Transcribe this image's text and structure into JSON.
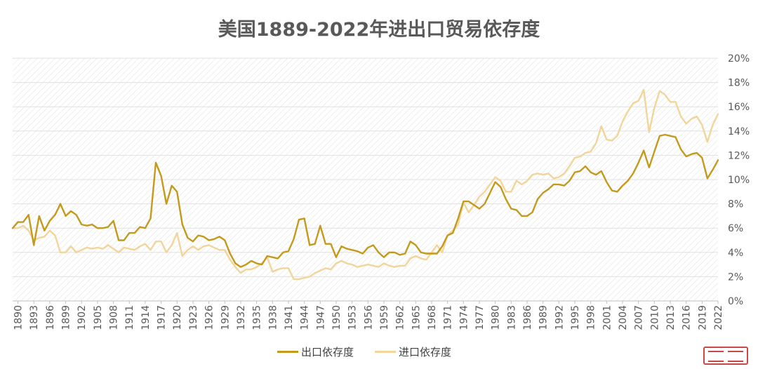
{
  "title": "美国1889-2022年进出口贸易依存度",
  "colors": {
    "export": "#c49a1c",
    "import": "#f1d59a",
    "grid": "#e0e0e0",
    "axis": "#bfbfbf"
  },
  "legend": {
    "export_label": "出口依存度",
    "import_label": "进口依存度"
  },
  "chart_data": {
    "type": "line",
    "title": "美国1889-2022年进出口贸易依存度",
    "x_range": [
      1889,
      2022
    ],
    "ylim": [
      0,
      20
    ],
    "y_axis_side": "right",
    "y_tick_labels": [
      "0%",
      "2%",
      "4%",
      "6%",
      "8%",
      "10%",
      "12%",
      "14%",
      "16%",
      "18%",
      "20%"
    ],
    "x_tick_labels": [
      "1890",
      "1893",
      "1896",
      "1899",
      "1902",
      "1905",
      "1908",
      "1911",
      "1914",
      "1917",
      "1920",
      "1923",
      "1926",
      "1929",
      "1932",
      "1935",
      "1938",
      "1941",
      "1944",
      "1947",
      "1950",
      "1953",
      "1956",
      "1959",
      "1962",
      "1965",
      "1968",
      "1971",
      "1974",
      "1977",
      "1980",
      "1983",
      "1986",
      "1989",
      "1992",
      "1995",
      "1998",
      "2001",
      "2004",
      "2007",
      "2010",
      "2013",
      "2016",
      "2019",
      "2022"
    ],
    "legend_position": "bottom",
    "grid": true,
    "series": [
      {
        "name": "出口依存度",
        "points": [
          [
            1889,
            6.0
          ],
          [
            1890,
            6.5
          ],
          [
            1891,
            6.5
          ],
          [
            1892,
            7.1
          ],
          [
            1893,
            4.6
          ],
          [
            1894,
            7.0
          ],
          [
            1895,
            5.8
          ],
          [
            1896,
            6.6
          ],
          [
            1897,
            7.1
          ],
          [
            1898,
            8.0
          ],
          [
            1899,
            7.0
          ],
          [
            1900,
            7.4
          ],
          [
            1901,
            7.1
          ],
          [
            1902,
            6.3
          ],
          [
            1903,
            6.2
          ],
          [
            1904,
            6.3
          ],
          [
            1905,
            6.0
          ],
          [
            1906,
            6.0
          ],
          [
            1907,
            6.1
          ],
          [
            1908,
            6.6
          ],
          [
            1909,
            5.0
          ],
          [
            1910,
            5.0
          ],
          [
            1911,
            5.6
          ],
          [
            1912,
            5.6
          ],
          [
            1913,
            6.1
          ],
          [
            1914,
            6.0
          ],
          [
            1915,
            6.8
          ],
          [
            1916,
            11.4
          ],
          [
            1917,
            10.3
          ],
          [
            1918,
            8.0
          ],
          [
            1919,
            9.5
          ],
          [
            1920,
            9.0
          ],
          [
            1921,
            6.3
          ],
          [
            1922,
            5.2
          ],
          [
            1923,
            4.9
          ],
          [
            1924,
            5.4
          ],
          [
            1925,
            5.3
          ],
          [
            1926,
            5.0
          ],
          [
            1927,
            5.1
          ],
          [
            1928,
            5.3
          ],
          [
            1929,
            5.0
          ],
          [
            1930,
            3.9
          ],
          [
            1931,
            3.1
          ],
          [
            1932,
            2.8
          ],
          [
            1933,
            3.0
          ],
          [
            1934,
            3.3
          ],
          [
            1935,
            3.1
          ],
          [
            1936,
            3.0
          ],
          [
            1937,
            3.7
          ],
          [
            1938,
            3.6
          ],
          [
            1939,
            3.5
          ],
          [
            1940,
            4.0
          ],
          [
            1941,
            4.1
          ],
          [
            1942,
            5.1
          ],
          [
            1943,
            6.7
          ],
          [
            1944,
            6.8
          ],
          [
            1945,
            4.6
          ],
          [
            1946,
            4.7
          ],
          [
            1947,
            6.2
          ],
          [
            1948,
            4.7
          ],
          [
            1949,
            4.7
          ],
          [
            1950,
            3.6
          ],
          [
            1951,
            4.5
          ],
          [
            1952,
            4.3
          ],
          [
            1953,
            4.2
          ],
          [
            1954,
            4.1
          ],
          [
            1955,
            3.9
          ],
          [
            1956,
            4.4
          ],
          [
            1957,
            4.6
          ],
          [
            1958,
            4.0
          ],
          [
            1959,
            3.6
          ],
          [
            1960,
            4.0
          ],
          [
            1961,
            4.0
          ],
          [
            1962,
            3.8
          ],
          [
            1963,
            3.9
          ],
          [
            1964,
            4.9
          ],
          [
            1965,
            4.6
          ],
          [
            1966,
            4.0
          ],
          [
            1967,
            3.9
          ],
          [
            1968,
            3.9
          ],
          [
            1969,
            3.9
          ],
          [
            1970,
            4.5
          ],
          [
            1971,
            5.4
          ],
          [
            1972,
            5.6
          ],
          [
            1973,
            6.8
          ],
          [
            1974,
            8.2
          ],
          [
            1975,
            8.2
          ],
          [
            1976,
            7.9
          ],
          [
            1977,
            7.6
          ],
          [
            1978,
            8.0
          ],
          [
            1979,
            8.9
          ],
          [
            1980,
            9.8
          ],
          [
            1981,
            9.4
          ],
          [
            1982,
            8.4
          ],
          [
            1983,
            7.6
          ],
          [
            1984,
            7.5
          ],
          [
            1985,
            7.0
          ],
          [
            1986,
            7.0
          ],
          [
            1987,
            7.3
          ],
          [
            1988,
            8.4
          ],
          [
            1989,
            8.9
          ],
          [
            1990,
            9.2
          ],
          [
            1991,
            9.6
          ],
          [
            1992,
            9.6
          ],
          [
            1993,
            9.5
          ],
          [
            1994,
            9.9
          ],
          [
            1995,
            10.6
          ],
          [
            1996,
            10.7
          ],
          [
            1997,
            11.1
          ],
          [
            1998,
            10.6
          ],
          [
            1999,
            10.4
          ],
          [
            2000,
            10.7
          ],
          [
            2001,
            9.8
          ],
          [
            2002,
            9.1
          ],
          [
            2003,
            9.0
          ],
          [
            2004,
            9.5
          ],
          [
            2005,
            9.9
          ],
          [
            2006,
            10.5
          ],
          [
            2007,
            11.4
          ],
          [
            2008,
            12.4
          ],
          [
            2009,
            11.0
          ],
          [
            2010,
            12.3
          ],
          [
            2011,
            13.6
          ],
          [
            2012,
            13.7
          ],
          [
            2013,
            13.6
          ],
          [
            2014,
            13.5
          ],
          [
            2015,
            12.5
          ],
          [
            2016,
            11.9
          ],
          [
            2017,
            12.1
          ],
          [
            2018,
            12.2
          ],
          [
            2019,
            11.8
          ],
          [
            2020,
            10.1
          ],
          [
            2021,
            10.8
          ],
          [
            2022,
            11.6
          ]
        ]
      },
      {
        "name": "进口依存度",
        "points": [
          [
            1889,
            6.0
          ],
          [
            1890,
            6.0
          ],
          [
            1891,
            6.2
          ],
          [
            1892,
            5.8
          ],
          [
            1893,
            5.0
          ],
          [
            1894,
            5.2
          ],
          [
            1895,
            5.3
          ],
          [
            1896,
            5.8
          ],
          [
            1897,
            5.4
          ],
          [
            1898,
            4.0
          ],
          [
            1899,
            4.0
          ],
          [
            1900,
            4.5
          ],
          [
            1901,
            4.0
          ],
          [
            1902,
            4.2
          ],
          [
            1903,
            4.4
          ],
          [
            1904,
            4.3
          ],
          [
            1905,
            4.4
          ],
          [
            1906,
            4.3
          ],
          [
            1907,
            4.6
          ],
          [
            1908,
            4.3
          ],
          [
            1909,
            4.0
          ],
          [
            1910,
            4.4
          ],
          [
            1911,
            4.3
          ],
          [
            1912,
            4.2
          ],
          [
            1913,
            4.5
          ],
          [
            1914,
            4.7
          ],
          [
            1915,
            4.2
          ],
          [
            1916,
            4.9
          ],
          [
            1917,
            4.9
          ],
          [
            1918,
            4.0
          ],
          [
            1919,
            4.6
          ],
          [
            1920,
            5.6
          ],
          [
            1921,
            3.7
          ],
          [
            1922,
            4.2
          ],
          [
            1923,
            4.5
          ],
          [
            1924,
            4.2
          ],
          [
            1925,
            4.5
          ],
          [
            1926,
            4.6
          ],
          [
            1927,
            4.4
          ],
          [
            1928,
            4.2
          ],
          [
            1929,
            4.2
          ],
          [
            1930,
            3.4
          ],
          [
            1931,
            2.8
          ],
          [
            1932,
            2.3
          ],
          [
            1933,
            2.6
          ],
          [
            1934,
            2.6
          ],
          [
            1935,
            2.8
          ],
          [
            1936,
            3.1
          ],
          [
            1937,
            3.6
          ],
          [
            1938,
            2.4
          ],
          [
            1939,
            2.6
          ],
          [
            1940,
            2.7
          ],
          [
            1941,
            2.7
          ],
          [
            1942,
            1.8
          ],
          [
            1943,
            1.8
          ],
          [
            1944,
            1.9
          ],
          [
            1945,
            2.0
          ],
          [
            1946,
            2.3
          ],
          [
            1947,
            2.5
          ],
          [
            1948,
            2.7
          ],
          [
            1949,
            2.6
          ],
          [
            1950,
            3.1
          ],
          [
            1951,
            3.3
          ],
          [
            1952,
            3.1
          ],
          [
            1953,
            3.0
          ],
          [
            1954,
            2.8
          ],
          [
            1955,
            2.9
          ],
          [
            1956,
            3.0
          ],
          [
            1957,
            2.9
          ],
          [
            1958,
            2.8
          ],
          [
            1959,
            3.1
          ],
          [
            1960,
            2.9
          ],
          [
            1961,
            2.8
          ],
          [
            1962,
            2.9
          ],
          [
            1963,
            2.9
          ],
          [
            1964,
            3.5
          ],
          [
            1965,
            3.7
          ],
          [
            1966,
            3.5
          ],
          [
            1967,
            3.4
          ],
          [
            1968,
            4.0
          ],
          [
            1969,
            4.6
          ],
          [
            1970,
            4.0
          ],
          [
            1971,
            5.4
          ],
          [
            1972,
            5.8
          ],
          [
            1973,
            6.3
          ],
          [
            1974,
            8.1
          ],
          [
            1975,
            7.3
          ],
          [
            1976,
            7.9
          ],
          [
            1977,
            8.6
          ],
          [
            1978,
            9.0
          ],
          [
            1979,
            9.6
          ],
          [
            1980,
            10.2
          ],
          [
            1981,
            9.9
          ],
          [
            1982,
            9.0
          ],
          [
            1983,
            9.0
          ],
          [
            1984,
            9.9
          ],
          [
            1985,
            9.6
          ],
          [
            1986,
            9.9
          ],
          [
            1987,
            10.4
          ],
          [
            1988,
            10.5
          ],
          [
            1989,
            10.4
          ],
          [
            1990,
            10.5
          ],
          [
            1991,
            10.1
          ],
          [
            1992,
            10.2
          ],
          [
            1993,
            10.5
          ],
          [
            1994,
            11.1
          ],
          [
            1995,
            11.8
          ],
          [
            1996,
            11.9
          ],
          [
            1997,
            12.2
          ],
          [
            1998,
            12.3
          ],
          [
            1999,
            13.0
          ],
          [
            2000,
            14.4
          ],
          [
            2001,
            13.3
          ],
          [
            2002,
            13.2
          ],
          [
            2003,
            13.6
          ],
          [
            2004,
            14.8
          ],
          [
            2005,
            15.6
          ],
          [
            2006,
            16.3
          ],
          [
            2007,
            16.5
          ],
          [
            2008,
            17.4
          ],
          [
            2009,
            13.9
          ],
          [
            2010,
            15.9
          ],
          [
            2011,
            17.3
          ],
          [
            2012,
            17.0
          ],
          [
            2013,
            16.4
          ],
          [
            2014,
            16.4
          ],
          [
            2015,
            15.2
          ],
          [
            2016,
            14.6
          ],
          [
            2017,
            15.0
          ],
          [
            2018,
            15.2
          ],
          [
            2019,
            14.5
          ],
          [
            2020,
            13.1
          ],
          [
            2021,
            14.5
          ],
          [
            2022,
            15.4
          ]
        ]
      }
    ]
  }
}
